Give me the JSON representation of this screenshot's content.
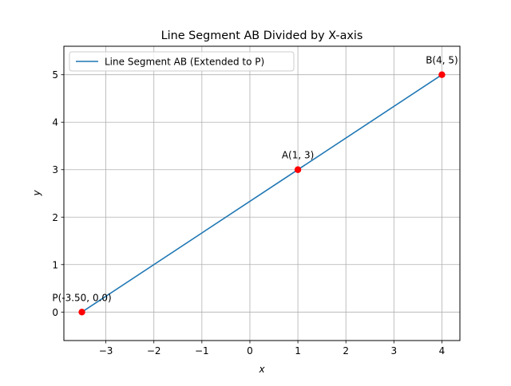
{
  "chart_data": {
    "type": "line",
    "title": "Line Segment AB Divided by X-axis",
    "xlabel": "x",
    "ylabel": "y",
    "xlim": [
      -3.875,
      4.375
    ],
    "ylim": [
      -0.6,
      5.6
    ],
    "xticks": [
      -3,
      -2,
      -1,
      0,
      1,
      2,
      3,
      4
    ],
    "xtick_labels": [
      "−3",
      "−2",
      "−1",
      "0",
      "1",
      "2",
      "3",
      "4"
    ],
    "yticks": [
      0,
      1,
      2,
      3,
      4,
      5
    ],
    "ytick_labels": [
      "0",
      "1",
      "2",
      "3",
      "4",
      "5"
    ],
    "grid": true,
    "legend_position": "upper-left",
    "series": [
      {
        "name": "Line Segment AB (Extended to P)",
        "color": "#1f77b4",
        "x": [
          -3.5,
          4
        ],
        "y": [
          0,
          5
        ]
      }
    ],
    "points": [
      {
        "label": "P(-3.50, 0.0)",
        "x": -3.5,
        "y": 0,
        "color": "#ff0000"
      },
      {
        "label": "A(1, 3)",
        "x": 1,
        "y": 3,
        "color": "#ff0000"
      },
      {
        "label": "B(4, 5)",
        "x": 4,
        "y": 5,
        "color": "#ff0000"
      }
    ]
  }
}
